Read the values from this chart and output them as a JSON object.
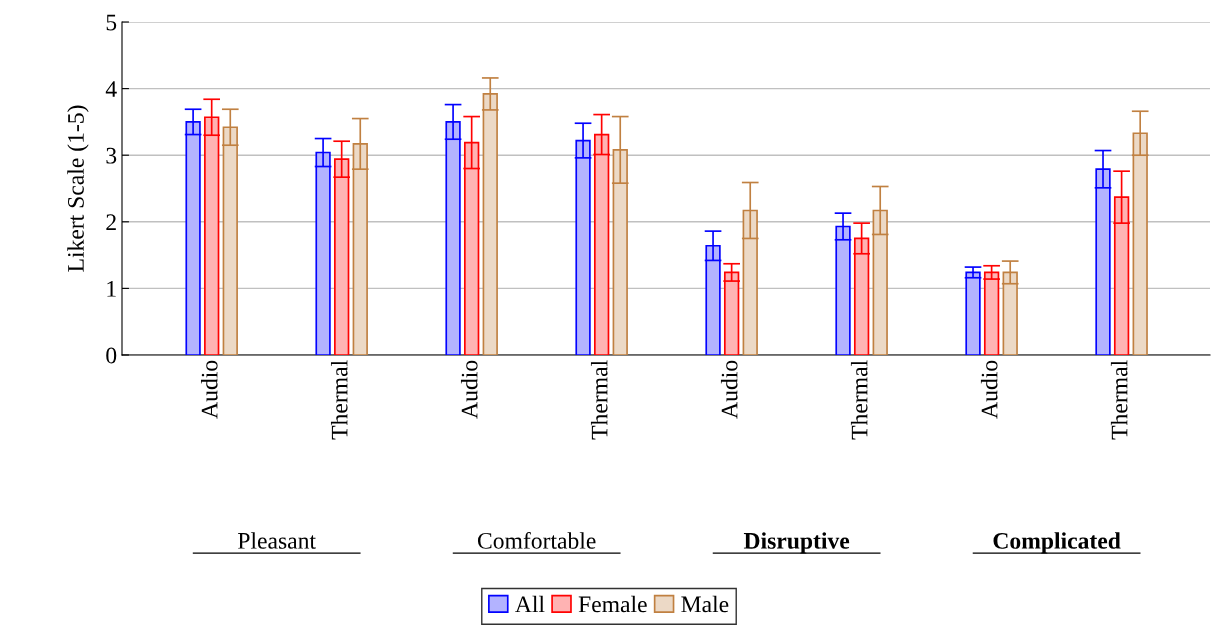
{
  "chart_data": {
    "type": "bar",
    "ylabel": "Likert Scale (1-5)",
    "categories": [
      "Audio",
      "Thermal",
      "Audio",
      "Thermal",
      "Audio",
      "Thermal",
      "Audio",
      "Thermal"
    ],
    "series": [
      {
        "name": "All",
        "color": "#b3b3ff",
        "values": [
          3.5,
          3.04,
          3.5,
          3.22,
          1.64,
          1.93,
          1.24,
          2.79
        ],
        "errors": [
          0.19,
          0.21,
          0.26,
          0.26,
          0.22,
          0.2,
          0.08,
          0.28
        ]
      },
      {
        "name": "Female",
        "color": "#ffb3b3",
        "values": [
          3.57,
          2.94,
          3.19,
          3.31,
          1.24,
          1.75,
          1.24,
          2.37
        ],
        "errors": [
          0.27,
          0.27,
          0.39,
          0.3,
          0.13,
          0.23,
          0.1,
          0.39
        ]
      },
      {
        "name": "Male",
        "color": "#ecd9c6",
        "values": [
          3.42,
          3.17,
          3.92,
          3.08,
          2.17,
          2.17,
          1.24,
          3.33
        ],
        "errors": [
          0.27,
          0.38,
          0.24,
          0.5,
          0.42,
          0.36,
          0.17,
          0.33
        ]
      }
    ],
    "annotations": [
      "Pleasant",
      "Comfortable",
      "Disruptive",
      "Complicated"
    ],
    "ylim": [
      0,
      5
    ],
    "yticks": [
      0,
      1,
      2,
      3,
      4,
      5
    ],
    "grid": "y",
    "legend": "bottom"
  }
}
